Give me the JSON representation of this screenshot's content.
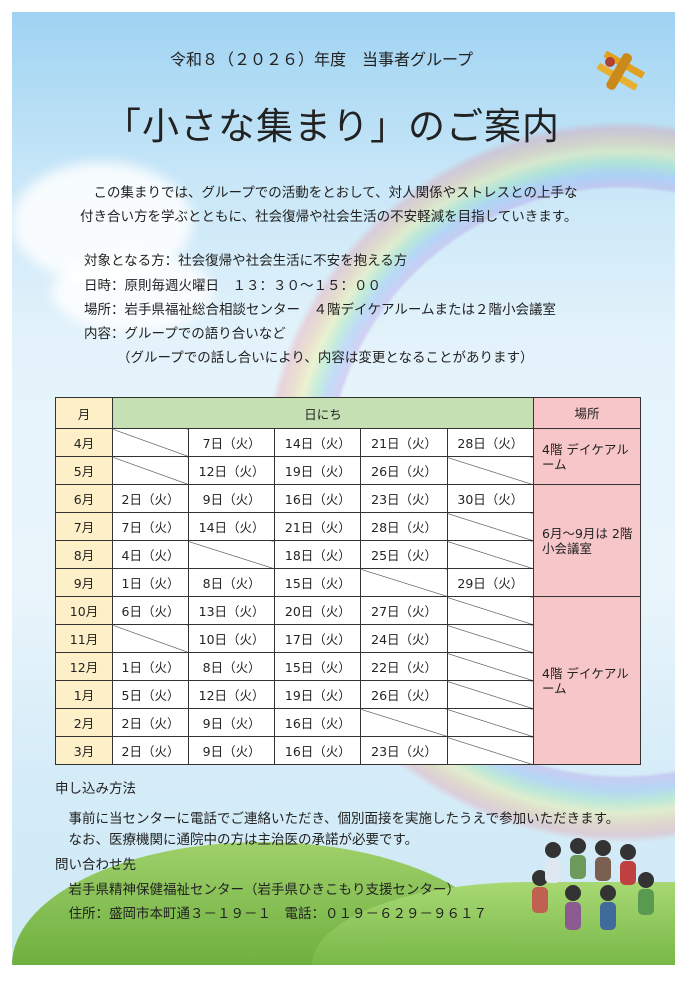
{
  "header": {
    "subtitle": "令和８（２０２６）年度　当事者グループ",
    "title": "「小さな集まり」のご案内"
  },
  "intro": [
    "　この集まりでは、グループでの活動をとおして、対人関係やストレスとの上手な",
    "付き合い方を学ぶとともに、社会復帰や社会生活の不安軽減を目指していきます。"
  ],
  "details": {
    "target": "対象となる方：社会復帰や社会生活に不安を抱える方",
    "datetime": "日時：原則毎週火曜日　１３：３０～１５：００",
    "place": "場所：岩手県福祉総合相談センター　４階デイケアルームまたは２階小会議室",
    "content": "内容：グループでの語り合いなど",
    "note": "（グループでの話し合いにより、内容は変更となることがあります）"
  },
  "schedule": {
    "headers": {
      "month": "月",
      "dates": "日にち",
      "place": "場所"
    },
    "rows": [
      {
        "month": "4月",
        "dates": [
          "",
          "7日（火）",
          "14日（火）",
          "21日（火）",
          "28日（火）"
        ]
      },
      {
        "month": "5月",
        "dates": [
          "",
          "12日（火）",
          "19日（火）",
          "26日（火）",
          ""
        ]
      },
      {
        "month": "6月",
        "dates": [
          "2日（火）",
          "9日（火）",
          "16日（火）",
          "23日（火）",
          "30日（火）"
        ]
      },
      {
        "month": "7月",
        "dates": [
          "7日（火）",
          "14日（火）",
          "21日（火）",
          "28日（火）",
          ""
        ]
      },
      {
        "month": "8月",
        "dates": [
          "4日（火）",
          "",
          "18日（火）",
          "25日（火）",
          ""
        ]
      },
      {
        "month": "9月",
        "dates": [
          "1日（火）",
          "8日（火）",
          "15日（火）",
          "",
          "29日（火）"
        ]
      },
      {
        "month": "10月",
        "dates": [
          "6日（火）",
          "13日（火）",
          "20日（火）",
          "27日（火）",
          ""
        ]
      },
      {
        "month": "11月",
        "dates": [
          "",
          "10日（火）",
          "17日（火）",
          "24日（火）",
          ""
        ]
      },
      {
        "month": "12月",
        "dates": [
          "1日（火）",
          "8日（火）",
          "15日（火）",
          "22日（火）",
          ""
        ]
      },
      {
        "month": "1月",
        "dates": [
          "5日（火）",
          "12日（火）",
          "19日（火）",
          "26日（火）",
          ""
        ]
      },
      {
        "month": "2月",
        "dates": [
          "2日（火）",
          "9日（火）",
          "16日（火）",
          "",
          ""
        ]
      },
      {
        "month": "3月",
        "dates": [
          "2日（火）",
          "9日（火）",
          "16日（火）",
          "23日（火）",
          ""
        ]
      }
    ],
    "places": [
      {
        "label": "4階 デイケアルーム",
        "months": 2
      },
      {
        "label": "6月～9月は 2階 小会議室",
        "months": 4
      },
      {
        "label": "4階 デイケアルーム",
        "months": 6
      }
    ]
  },
  "application": {
    "heading": "申し込み方法",
    "lines": [
      "　事前に当センターに電話でご連絡いただき、個別面接を実施したうえで参加いただきます。",
      "　なお、医療機関に通院中の方は主治医の承諾が必要です。"
    ]
  },
  "contact": {
    "heading": "問い合わせ先",
    "org": "　岩手県精神保健福祉センター（岩手県ひきこもり支援センター）",
    "address": "　住所：盛岡市本町通３－１９－１　電話：０１９－６２９－９６１７"
  },
  "colors": {
    "month_col": "#fdf0c8",
    "dates_header": "#c5e0b3",
    "place_col": "#f7c6c8"
  }
}
